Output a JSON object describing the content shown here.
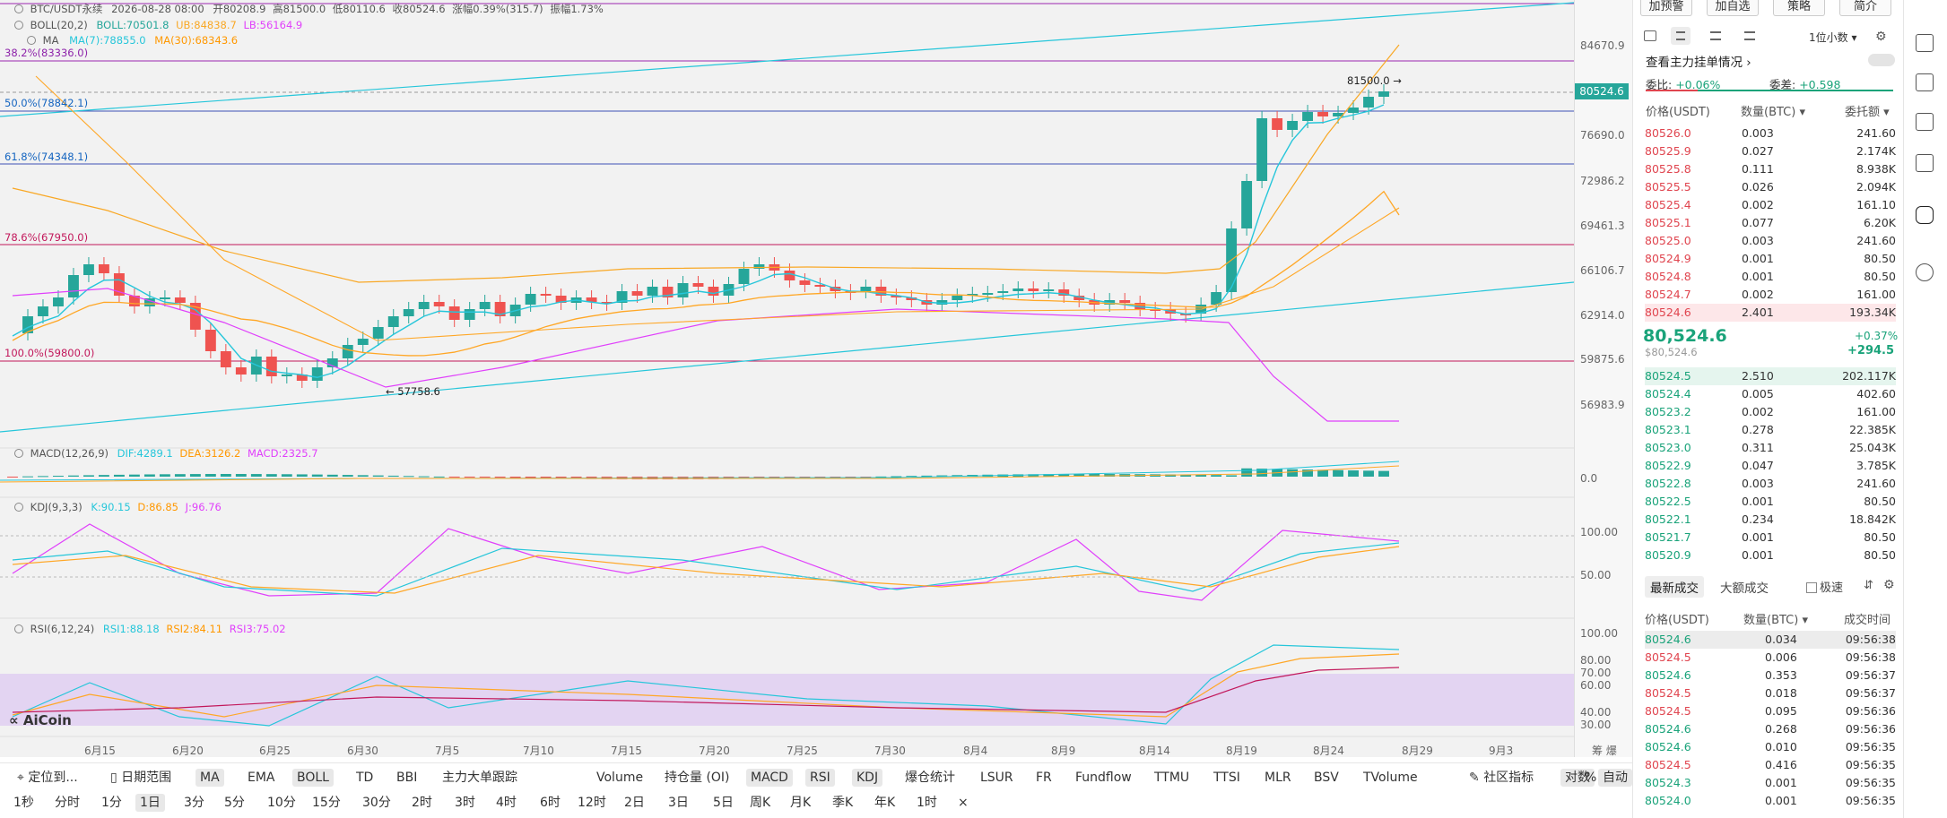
{
  "chart": {
    "legend": {
      "symbol": "BTC/USDT永续",
      "datetime": "2026-08-28 08:00",
      "open_label": "开",
      "open": "80208.9",
      "high_label": "高",
      "high": "81500.0",
      "low_label": "低",
      "low": "80110.6",
      "close_label": "收",
      "close": "80524.6",
      "change_label": "涨幅",
      "change": "0.39%(315.7)",
      "amp_label": "振幅",
      "amp": "1.73%"
    },
    "boll": {
      "label": "BOLL(20,2)",
      "mid": "BOLL:70501.8",
      "ub": "UB:84838.7",
      "lb": "LB:56164.9"
    },
    "ma": {
      "label": "MA",
      "ma7": "MA(7):78855.0",
      "ma30": "MA(30):68343.6"
    },
    "fib": [
      {
        "text": "38.2%(83336.0)",
        "color": "#8e24aa"
      },
      {
        "text": "50.0%(78842.1)",
        "color": "#1565c0"
      },
      {
        "text": "61.8%(74348.1)",
        "color": "#1565c0"
      },
      {
        "text": "78.6%(67950.0)",
        "color": "#c2185b"
      },
      {
        "text": "100.0%(59800.0)",
        "color": "#c2185b"
      }
    ],
    "annotations": {
      "high": "81500.0",
      "low": "57758.6"
    },
    "current_price": "80524.6",
    "y_axis": [
      "84670.9",
      "76690.0",
      "72986.2",
      "69461.3",
      "66106.7",
      "62914.0",
      "59875.6",
      "56983.9"
    ],
    "x_axis": [
      "6月15",
      "6月20",
      "6月25",
      "6月30",
      "7月5",
      "7月10",
      "7月15",
      "7月20",
      "7月25",
      "7月30",
      "8月4",
      "8月9",
      "8月14",
      "8月19",
      "8月24",
      "8月29",
      "9月3"
    ],
    "macd": {
      "label": "MACD(12,26,9)",
      "dif": "DIF:4289.1",
      "dea": "DEA:3126.2",
      "macd": "MACD:2325.7",
      "axis": "0.0"
    },
    "kdj": {
      "label": "KDJ(9,3,3)",
      "k": "K:90.15",
      "d": "D:86.85",
      "j": "J:96.76",
      "axis": [
        "100.00",
        "50.00"
      ]
    },
    "rsi": {
      "label": "RSI(6,12,24)",
      "rsi1": "RSI1:88.18",
      "rsi2": "RSI2:84.11",
      "rsi3": "RSI3:75.02",
      "axis": [
        "100.00",
        "80.00",
        "70.00",
        "60.00",
        "40.00",
        "30.00"
      ]
    },
    "watermark": "AiCoin",
    "axis_corner": [
      "筹",
      "爆"
    ],
    "colors": {
      "up": "#26a69a",
      "down": "#ef5350",
      "ma7": "#26c6da",
      "ma30": "#ffa726",
      "boll_band": "#f9a825",
      "boll_lower": "#e040fb",
      "trend": "#26c6da"
    }
  },
  "toolbar1": {
    "items": [
      "定位到...",
      "日期范围",
      "MA",
      "EMA",
      "BOLL",
      "TD",
      "BBI",
      "主力大单跟踪",
      "Volume",
      "持仓量 (OI)",
      "MACD",
      "RSI",
      "KDJ",
      "爆仓统计",
      "LSUR",
      "FR",
      "Fundflow",
      "TTMU",
      "TTSI",
      "MLR",
      "BSV",
      "TVolume",
      "社区指标",
      "对数",
      "%",
      "自动"
    ],
    "active": [
      "MA",
      "BOLL",
      "MACD",
      "RSI",
      "KDJ",
      "对数",
      "自动"
    ]
  },
  "toolbar2": {
    "items": [
      "1秒",
      "分时",
      "1分",
      "1日",
      "3分",
      "5分",
      "10分",
      "15分",
      "30分",
      "2时",
      "3时",
      "4时",
      "6时",
      "12时",
      "2日",
      "3日",
      "5日",
      "周K",
      "月K",
      "季K",
      "年K",
      "1时",
      "×"
    ],
    "active": "1日"
  },
  "side": {
    "top_buttons": [
      "加预警",
      "加自选",
      "策略",
      "简介"
    ],
    "decimal": "1位小数",
    "main_orders": "查看主力挂单情况",
    "ratio_label": "委比:",
    "ratio": "+0.06%",
    "diff_label": "委差:",
    "diff": "+0.598",
    "ob_headers": [
      "价格(USDT)",
      "数量(BTC)",
      "委托额"
    ],
    "asks": [
      [
        "80526.0",
        "0.003",
        "241.60"
      ],
      [
        "80525.9",
        "0.027",
        "2.174K"
      ],
      [
        "80525.8",
        "0.111",
        "8.938K"
      ],
      [
        "80525.5",
        "0.026",
        "2.094K"
      ],
      [
        "80525.4",
        "0.002",
        "161.10"
      ],
      [
        "80525.1",
        "0.077",
        "6.20K"
      ],
      [
        "80525.0",
        "0.003",
        "241.60"
      ],
      [
        "80524.9",
        "0.001",
        "80.50"
      ],
      [
        "80524.8",
        "0.001",
        "80.50"
      ],
      [
        "80524.7",
        "0.002",
        "161.00"
      ],
      [
        "80524.6",
        "2.401",
        "193.34K"
      ]
    ],
    "last_price": "80,524.6",
    "last_price_sub": "$80,524.6",
    "last_pct": "+0.37%",
    "last_abs": "+294.5",
    "bids": [
      [
        "80524.5",
        "2.510",
        "202.117K"
      ],
      [
        "80524.4",
        "0.005",
        "402.60"
      ],
      [
        "80523.2",
        "0.002",
        "161.00"
      ],
      [
        "80523.1",
        "0.278",
        "22.385K"
      ],
      [
        "80523.0",
        "0.311",
        "25.043K"
      ],
      [
        "80522.9",
        "0.047",
        "3.785K"
      ],
      [
        "80522.8",
        "0.003",
        "241.60"
      ],
      [
        "80522.5",
        "0.001",
        "80.50"
      ],
      [
        "80522.1",
        "0.234",
        "18.842K"
      ],
      [
        "80521.7",
        "0.001",
        "80.50"
      ],
      [
        "80520.9",
        "0.001",
        "80.50"
      ]
    ],
    "trade_tabs": [
      "最新成交",
      "大额成交"
    ],
    "speed_label": "极速",
    "trade_headers": [
      "价格(USDT)",
      "数量(BTC)",
      "成交时间"
    ],
    "trades": [
      [
        "80524.6",
        "0.034",
        "09:56:38",
        "up"
      ],
      [
        "80524.5",
        "0.006",
        "09:56:38",
        "down"
      ],
      [
        "80524.6",
        "0.353",
        "09:56:37",
        "up"
      ],
      [
        "80524.5",
        "0.018",
        "09:56:37",
        "down"
      ],
      [
        "80524.5",
        "0.095",
        "09:56:36",
        "down"
      ],
      [
        "80524.6",
        "0.268",
        "09:56:36",
        "up"
      ],
      [
        "80524.6",
        "0.010",
        "09:56:35",
        "up"
      ],
      [
        "80524.5",
        "0.416",
        "09:56:35",
        "down"
      ],
      [
        "80524.3",
        "0.001",
        "09:56:35",
        "up"
      ],
      [
        "80524.0",
        "0.001",
        "09:56:35",
        "up"
      ]
    ]
  }
}
